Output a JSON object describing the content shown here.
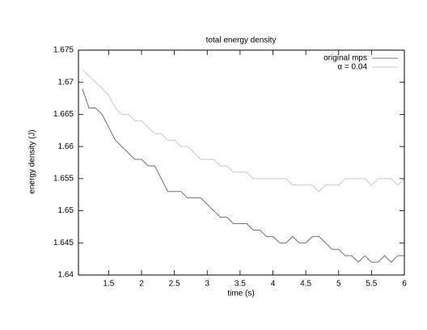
{
  "chart_data": {
    "type": "line",
    "title": "total energy density",
    "x_label": "time (s)",
    "y_label": "energy density (J)",
    "x": [
      1.1,
      1.2,
      1.3,
      1.4,
      1.5,
      1.6,
      1.7,
      1.8,
      1.9,
      2.0,
      2.1,
      2.2,
      2.3,
      2.4,
      2.5,
      2.6,
      2.7,
      2.8,
      2.9,
      3.0,
      3.1,
      3.2,
      3.3,
      3.4,
      3.5,
      3.6,
      3.7,
      3.8,
      3.9,
      4.0,
      4.1,
      4.2,
      4.3,
      4.4,
      4.5,
      4.6,
      4.7,
      4.8,
      4.9,
      5.0,
      5.1,
      5.2,
      5.3,
      5.4,
      5.5,
      5.6,
      5.7,
      5.8,
      5.9,
      6.0
    ],
    "series": [
      {
        "name": "original mps",
        "color": "#707070",
        "values": [
          1.669,
          1.666,
          1.666,
          1.665,
          1.663,
          1.661,
          1.66,
          1.659,
          1.658,
          1.658,
          1.657,
          1.657,
          1.655,
          1.653,
          1.653,
          1.653,
          1.652,
          1.652,
          1.652,
          1.651,
          1.65,
          1.649,
          1.649,
          1.648,
          1.648,
          1.648,
          1.647,
          1.647,
          1.646,
          1.646,
          1.645,
          1.645,
          1.646,
          1.645,
          1.645,
          1.646,
          1.646,
          1.645,
          1.644,
          1.644,
          1.643,
          1.643,
          1.642,
          1.643,
          1.642,
          1.642,
          1.643,
          1.642,
          1.643,
          1.643
        ]
      },
      {
        "name": "α = 0.04",
        "color": "#c8c8c8",
        "values": [
          1.672,
          1.671,
          1.67,
          1.669,
          1.668,
          1.666,
          1.665,
          1.665,
          1.664,
          1.664,
          1.663,
          1.662,
          1.662,
          1.661,
          1.661,
          1.66,
          1.66,
          1.659,
          1.658,
          1.658,
          1.658,
          1.657,
          1.657,
          1.656,
          1.656,
          1.656,
          1.655,
          1.655,
          1.655,
          1.655,
          1.655,
          1.655,
          1.654,
          1.654,
          1.654,
          1.654,
          1.653,
          1.654,
          1.654,
          1.654,
          1.655,
          1.655,
          1.655,
          1.655,
          1.654,
          1.655,
          1.655,
          1.655,
          1.654,
          1.655
        ]
      }
    ],
    "xlim": [
      1.04,
      6
    ],
    "xticks": [
      1.5,
      2,
      2.5,
      3,
      3.5,
      4,
      4.5,
      5,
      5.5,
      6
    ],
    "ylim": [
      1.64,
      1.675
    ],
    "yticks": [
      1.64,
      1.645,
      1.65,
      1.655,
      1.66,
      1.665,
      1.67,
      1.675
    ],
    "legend": "top-right"
  }
}
